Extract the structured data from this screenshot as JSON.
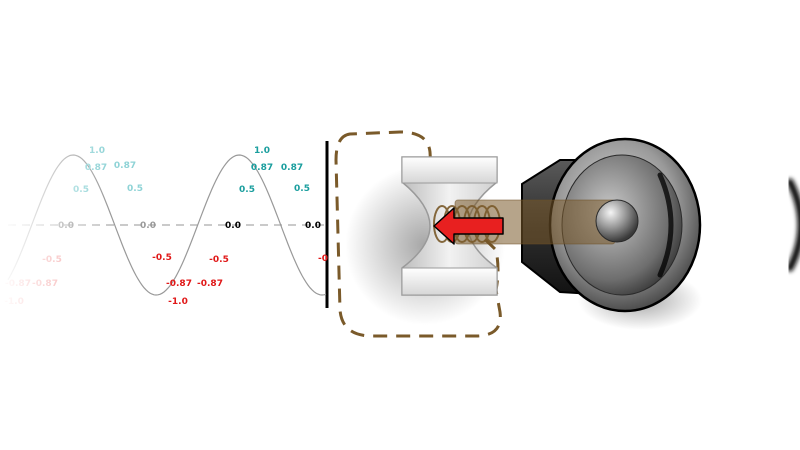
{
  "waveform": {
    "peak_label": "1.0",
    "upper_label": "0.87",
    "mid_upper_label": "0.5",
    "zero_label": "0.0",
    "mid_lower_label": "-0.5",
    "lower_label": "-0.87",
    "trough_label": "-1.0",
    "zero_label_partial": "-0",
    "positive_color_light": "#8fd3d6",
    "positive_color": "#1a9e9e",
    "negative_color_light": "#f4a0a0",
    "negative_color": "#e01818",
    "zero_color": "#000000",
    "curve_color": "#999999",
    "samples": [
      0,
      0.5,
      0.87,
      1,
      0.87,
      0.5,
      0,
      -0.5,
      -0.87,
      -1,
      -0.87,
      -0.5,
      0
    ]
  },
  "components": {
    "microphone_diaphragm": "magnet-block",
    "coil": "voice-coil",
    "direction_arrow": "red-arrow-left",
    "speaker": "loudspeaker-cone",
    "sound_wave": "sound-wave-arc",
    "focus_region": "dashed-outline",
    "rod_color": "#7a5a2a",
    "arrow_color": "#e82020"
  }
}
